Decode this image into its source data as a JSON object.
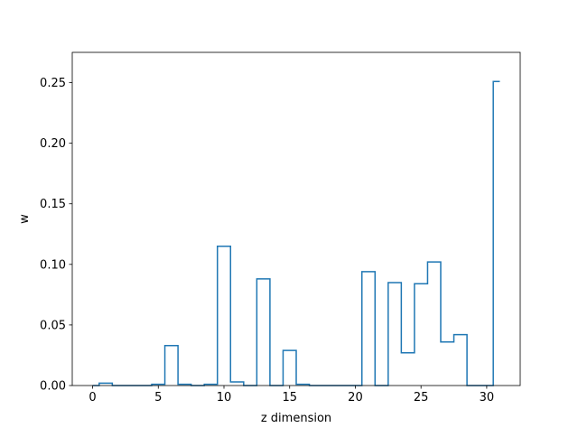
{
  "chart_data": {
    "type": "step",
    "title": "",
    "xlabel": "z dimension",
    "ylabel": "w",
    "xlim": [
      -1.55,
      32.55
    ],
    "ylim": [
      0,
      0.275
    ],
    "xticks": [
      0,
      5,
      10,
      15,
      20,
      25,
      30
    ],
    "xtick_labels": [
      "0",
      "5",
      "10",
      "15",
      "20",
      "25",
      "30"
    ],
    "yticks": [
      0,
      0.05,
      0.1,
      0.15,
      0.2,
      0.25
    ],
    "ytick_labels": [
      "0.00",
      "0.05",
      "0.10",
      "0.15",
      "0.20",
      "0.25"
    ],
    "step_where": "mid",
    "grid": false,
    "color": "#1f77b4",
    "x": [
      0,
      1,
      2,
      3,
      4,
      5,
      6,
      7,
      8,
      9,
      10,
      11,
      12,
      13,
      14,
      15,
      16,
      17,
      18,
      19,
      20,
      21,
      22,
      23,
      24,
      25,
      26,
      27,
      28,
      29,
      30,
      31
    ],
    "values": [
      0.0,
      0.002,
      0.0,
      0.0,
      0.0,
      0.001,
      0.033,
      0.001,
      0.0,
      0.001,
      0.115,
      0.003,
      0.0,
      0.088,
      0.0,
      0.029,
      0.001,
      0.0,
      0.0,
      0.0,
      0.0,
      0.094,
      0.0,
      0.085,
      0.027,
      0.084,
      0.102,
      0.036,
      0.042,
      0.0,
      0.0,
      0.251
    ]
  }
}
